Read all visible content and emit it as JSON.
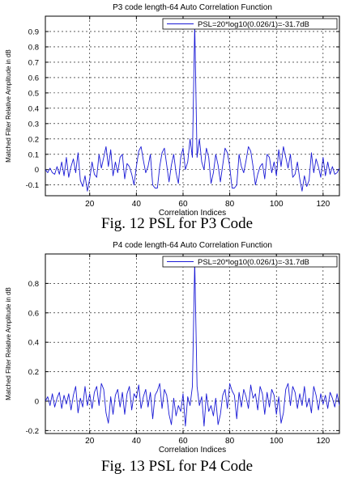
{
  "chart_data": [
    {
      "type": "line",
      "title": "P3 code length-64 Auto Correlation Function",
      "xlabel": "Correlation Indices",
      "ylabel": "Matched Filter Relative Amplitude in dB",
      "xlim": [
        1,
        127
      ],
      "ylim": [
        -0.17,
        1.0
      ],
      "xticks": [
        20,
        40,
        60,
        80,
        100,
        120
      ],
      "yticks": [
        -0.1,
        0,
        0.1,
        0.2,
        0.3,
        0.4,
        0.5,
        0.6,
        0.7,
        0.8,
        0.9
      ],
      "ytick_labels": [
        "-0.1",
        "0",
        "0.1",
        "0.2",
        "0.3",
        "0.4",
        "0.5",
        "0.6",
        "0.7",
        "0.8",
        "0.9"
      ],
      "grid": true,
      "legend_position": "top-right",
      "color": "#1a1ad6",
      "series": [
        {
          "name": "PSL=20*log10(0.026/1)=-31.7dB",
          "values": [
            0,
            -0.02,
            0.01,
            -0.02,
            -0.03,
            0.02,
            -0.03,
            0.05,
            -0.04,
            0.08,
            -0.05,
            0.02,
            0.07,
            -0.02,
            0.11,
            -0.07,
            -0.11,
            -0.04,
            -0.14,
            -0.06,
            0.05,
            -0.03,
            -0.05,
            0.1,
            0.01,
            0.08,
            0.15,
            0.02,
            0.13,
            -0.04,
            0.05,
            -0.02,
            0.08,
            0.1,
            -0.06,
            0.04,
            0.02,
            -0.03,
            -0.1,
            0.02,
            0.12,
            0.15,
            0.06,
            -0.02,
            0.02,
            0.1,
            -0.1,
            -0.12,
            -0.12,
            0.02,
            0.11,
            0.14,
            0.03,
            -0.08,
            0.03,
            0.1,
            -0.02,
            -0.09,
            0.08,
            0.14,
            0.0,
            0.05,
            0.2,
            0.08,
            0.95,
            0.08,
            0.2,
            0.05,
            0.0,
            0.14,
            0.08,
            -0.09,
            -0.02,
            0.1,
            0.03,
            -0.08,
            0.03,
            0.14,
            0.11,
            0.02,
            -0.12,
            -0.12,
            -0.1,
            0.1,
            0.02,
            -0.02,
            0.06,
            0.15,
            0.12,
            0.02,
            -0.1,
            -0.03,
            0.02,
            0.04,
            -0.06,
            0.1,
            0.08,
            -0.02,
            0.05,
            -0.04,
            0.13,
            0.02,
            0.15,
            0.08,
            0.01,
            0.1,
            -0.05,
            -0.03,
            0.05,
            -0.06,
            -0.14,
            -0.04,
            -0.11,
            -0.07,
            0.11,
            -0.02,
            0.07,
            0.02,
            -0.05,
            0.08,
            -0.04,
            0.05,
            -0.03,
            0.02,
            -0.03,
            -0.02,
            0.01
          ]
        }
      ]
    },
    {
      "type": "line",
      "title": "P4 code length-64 Auto Correlation Function",
      "xlabel": "Correlation Indices",
      "ylabel": "Matched Filter Relative Amplitude in dB",
      "xlim": [
        1,
        127
      ],
      "ylim": [
        -0.22,
        1.0
      ],
      "xticks": [
        20,
        40,
        60,
        80,
        100,
        120
      ],
      "yticks": [
        -0.2,
        0,
        0.2,
        0.4,
        0.6,
        0.8
      ],
      "ytick_labels": [
        "-0.2",
        "0",
        "0.2",
        "0.4",
        "0.6",
        "0.8"
      ],
      "grid": true,
      "legend_position": "top-right",
      "color": "#1a1ad6",
      "series": [
        {
          "name": "PSL=20*log10(0.026/1)=-31.7dB",
          "values": [
            0,
            0.03,
            -0.03,
            0.05,
            -0.04,
            0.02,
            0.06,
            -0.05,
            0.04,
            -0.02,
            0.05,
            -0.06,
            0.04,
            0.1,
            -0.08,
            0.02,
            -0.04,
            0.1,
            -0.03,
            0.05,
            -0.05,
            0.06,
            0.1,
            -0.03,
            0.12,
            0.08,
            -0.08,
            -0.15,
            0.03,
            -0.09,
            0.04,
            0.08,
            -0.04,
            0.06,
            -0.09,
            0.05,
            0.1,
            -0.06,
            0.05,
            0.02,
            0.11,
            -0.05,
            0.03,
            0.08,
            -0.04,
            0.06,
            -0.12,
            0.04,
            0.07,
            0.12,
            -0.05,
            0.08,
            0.04,
            -0.09,
            -0.16,
            0.02,
            -0.1,
            -0.03,
            -0.07,
            0.05,
            -0.17,
            0.03,
            -0.03,
            0.1,
            0.95,
            0.1,
            -0.03,
            0.03,
            -0.17,
            0.05,
            -0.07,
            -0.03,
            -0.1,
            0.02,
            -0.16,
            -0.09,
            0.04,
            0.08,
            -0.05,
            0.12,
            0.07,
            0.04,
            -0.12,
            0.06,
            -0.04,
            0.08,
            0.03,
            -0.05,
            0.11,
            0.02,
            0.05,
            -0.06,
            0.1,
            0.05,
            -0.09,
            0.06,
            -0.04,
            0.08,
            0.04,
            -0.09,
            0.03,
            -0.15,
            -0.08,
            0.08,
            0.12,
            -0.03,
            0.1,
            0.06,
            -0.05,
            0.05,
            -0.03,
            0.1,
            -0.04,
            0.02,
            -0.08,
            0.1,
            0.04,
            -0.06,
            0.05,
            -0.02,
            0.04,
            -0.05,
            0.06,
            0.02,
            -0.04,
            0.05,
            -0.03
          ]
        }
      ]
    }
  ],
  "captions": [
    "Fig. 12 PSL for P3 Code",
    "Fig. 13 PSL for P4 Code"
  ]
}
